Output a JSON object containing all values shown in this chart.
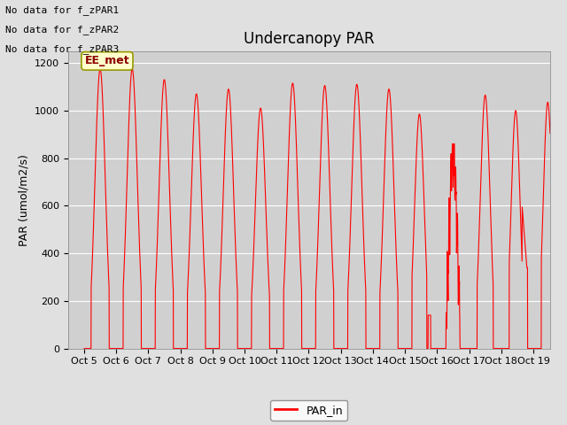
{
  "title": "Undercanopy PAR",
  "ylabel": "PAR (umol/m2/s)",
  "background_color": "#e0e0e0",
  "plot_bg_color": "#d0d0d0",
  "line_color": "red",
  "legend_label": "PAR_in",
  "annotations": [
    "No data for f_zPAR1",
    "No data for f_zPAR2",
    "No data for f_zPAR3"
  ],
  "ee_met_label": "EE_met",
  "ylim": [
    0,
    1250
  ],
  "yticks": [
    0,
    200,
    400,
    600,
    800,
    1000,
    1200
  ],
  "xtick_labels": [
    "Oct 5",
    "Oct 6",
    "Oct 7",
    "Oct 8",
    "Oct 9",
    "Oct 10",
    "Oct 11",
    "Oct 12",
    "Oct 13",
    "Oct 14",
    "Oct 15",
    "Oct 16",
    "Oct 17",
    "Oct 18",
    "Oct 19"
  ],
  "days": [
    5,
    6,
    7,
    8,
    9,
    10,
    11,
    12,
    13,
    14,
    15,
    16,
    17,
    18,
    19
  ],
  "daily_peaks": [
    1175,
    1175,
    1130,
    1070,
    1090,
    1010,
    1115,
    1105,
    1110,
    1090,
    985,
    855,
    1065,
    1000,
    1035
  ],
  "title_fontsize": 12,
  "label_fontsize": 9,
  "tick_fontsize": 8,
  "annot_fontsize": 8
}
